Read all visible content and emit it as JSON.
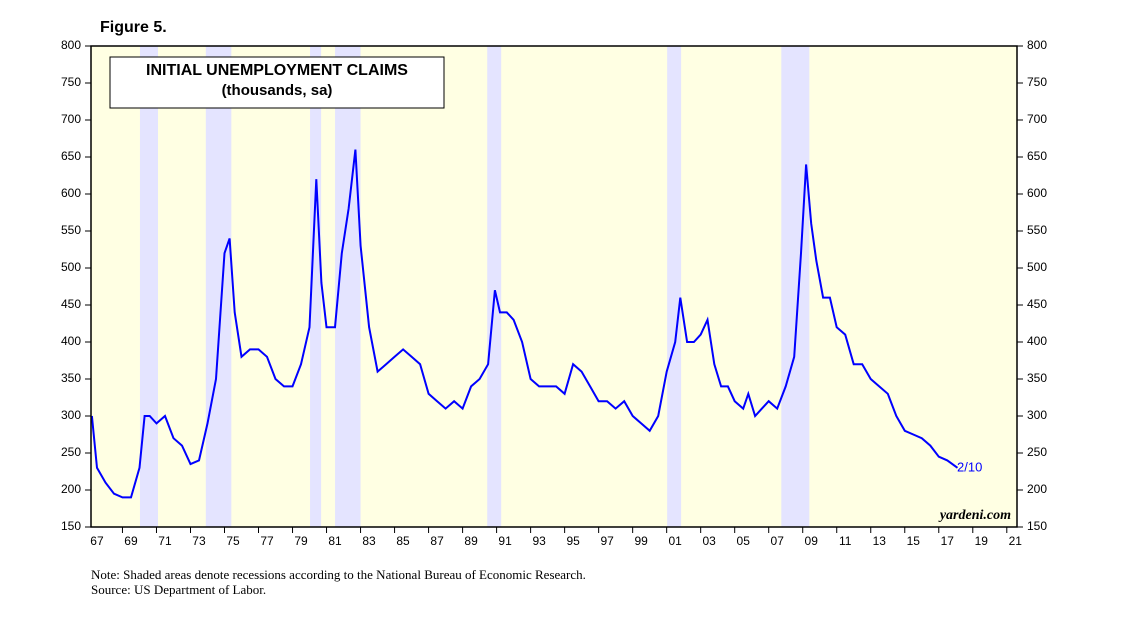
{
  "chart_data": {
    "type": "line",
    "figure_label": "Figure 5.",
    "title": "INITIAL UNEMPLOYMENT CLAIMS",
    "subtitle": "(thousands, sa)",
    "end_label": "2/10",
    "watermark": "yardeni.com",
    "notes": [
      "Note: Shaded areas denote recessions according to the National Bureau of Economic Research.",
      "Source: US Department of Labor."
    ],
    "xlim": [
      1967.15,
      2021.6
    ],
    "xticks": [
      {
        "value": 1967,
        "label": "67"
      },
      {
        "value": 1969,
        "label": "69"
      },
      {
        "value": 1971,
        "label": "71"
      },
      {
        "value": 1973,
        "label": "73"
      },
      {
        "value": 1975,
        "label": "75"
      },
      {
        "value": 1977,
        "label": "77"
      },
      {
        "value": 1979,
        "label": "79"
      },
      {
        "value": 1981,
        "label": "81"
      },
      {
        "value": 1983,
        "label": "83"
      },
      {
        "value": 1985,
        "label": "85"
      },
      {
        "value": 1987,
        "label": "87"
      },
      {
        "value": 1989,
        "label": "89"
      },
      {
        "value": 1991,
        "label": "91"
      },
      {
        "value": 1993,
        "label": "93"
      },
      {
        "value": 1995,
        "label": "95"
      },
      {
        "value": 1997,
        "label": "97"
      },
      {
        "value": 1999,
        "label": "99"
      },
      {
        "value": 2001,
        "label": "01"
      },
      {
        "value": 2003,
        "label": "03"
      },
      {
        "value": 2005,
        "label": "05"
      },
      {
        "value": 2007,
        "label": "07"
      },
      {
        "value": 2009,
        "label": "09"
      },
      {
        "value": 2011,
        "label": "11"
      },
      {
        "value": 2013,
        "label": "13"
      },
      {
        "value": 2015,
        "label": "15"
      },
      {
        "value": 2017,
        "label": "17"
      },
      {
        "value": 2019,
        "label": "19"
      },
      {
        "value": 2021,
        "label": "21"
      }
    ],
    "ylim": [
      150,
      800
    ],
    "yticks": [
      150,
      200,
      250,
      300,
      350,
      400,
      450,
      500,
      550,
      600,
      650,
      700,
      750,
      800
    ],
    "background_color": "#ffffe3",
    "recession_color": "#e4e4ff",
    "recessions": [
      [
        1970.03,
        1971.09
      ],
      [
        1973.9,
        1975.4
      ],
      [
        1980.03,
        1980.68
      ],
      [
        1981.5,
        1983.0
      ],
      [
        1990.45,
        1991.27
      ],
      [
        2001.03,
        2001.85
      ],
      [
        2007.74,
        2009.39
      ]
    ],
    "series": [
      {
        "color": "#0000ff",
        "x": [
          1967.2,
          1967.5,
          1968.0,
          1968.5,
          1969.0,
          1969.5,
          1970.0,
          1970.3,
          1970.6,
          1971.0,
          1971.5,
          1972.0,
          1972.5,
          1973.0,
          1973.5,
          1974.0,
          1974.5,
          1975.0,
          1975.3,
          1975.6,
          1976.0,
          1976.5,
          1977.0,
          1977.5,
          1978.0,
          1978.5,
          1979.0,
          1979.5,
          1980.0,
          1980.4,
          1980.7,
          1981.0,
          1981.5,
          1981.9,
          1982.3,
          1982.7,
          1983.0,
          1983.5,
          1984.0,
          1984.5,
          1985.0,
          1985.5,
          1986.0,
          1986.5,
          1987.0,
          1987.5,
          1988.0,
          1988.5,
          1989.0,
          1989.5,
          1990.0,
          1990.5,
          1990.9,
          1991.2,
          1991.6,
          1992.0,
          1992.5,
          1993.0,
          1993.5,
          1994.0,
          1994.5,
          1995.0,
          1995.5,
          1996.0,
          1996.5,
          1997.0,
          1997.5,
          1998.0,
          1998.5,
          1999.0,
          1999.5,
          2000.0,
          2000.5,
          2001.0,
          2001.5,
          2001.8,
          2002.2,
          2002.6,
          2003.0,
          2003.4,
          2003.8,
          2004.2,
          2004.6,
          2005.0,
          2005.5,
          2005.8,
          2006.2,
          2006.6,
          2007.0,
          2007.5,
          2008.0,
          2008.5,
          2008.9,
          2009.2,
          2009.5,
          2009.8,
          2010.2,
          2010.6,
          2011.0,
          2011.5,
          2012.0,
          2012.5,
          2013.0,
          2013.5,
          2014.0,
          2014.5,
          2015.0,
          2015.5,
          2016.0,
          2016.5,
          2017.0,
          2017.5,
          2018.1
        ],
        "values": [
          300,
          230,
          210,
          195,
          190,
          190,
          230,
          300,
          300,
          290,
          300,
          270,
          260,
          235,
          240,
          290,
          350,
          520,
          540,
          440,
          380,
          390,
          390,
          380,
          350,
          340,
          340,
          370,
          420,
          620,
          480,
          420,
          420,
          520,
          580,
          660,
          530,
          420,
          360,
          370,
          380,
          390,
          380,
          370,
          330,
          320,
          310,
          320,
          310,
          340,
          350,
          370,
          470,
          440,
          440,
          430,
          400,
          350,
          340,
          340,
          340,
          330,
          370,
          360,
          340,
          320,
          320,
          310,
          320,
          300,
          290,
          280,
          300,
          360,
          400,
          460,
          400,
          400,
          410,
          430,
          370,
          340,
          340,
          320,
          310,
          330,
          300,
          310,
          320,
          310,
          340,
          380,
          520,
          640,
          560,
          510,
          460,
          460,
          420,
          410,
          370,
          370,
          350,
          340,
          330,
          300,
          280,
          275,
          270,
          260,
          245,
          240,
          230
        ]
      }
    ]
  }
}
